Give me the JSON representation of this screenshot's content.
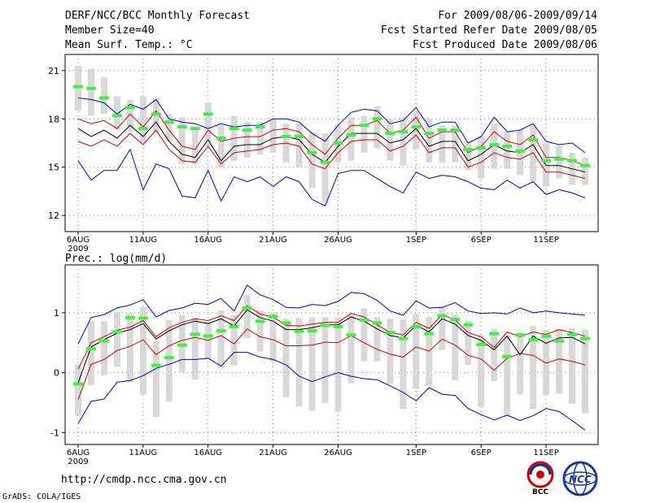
{
  "header": {
    "title": "DERF/NCC/BCC Monthly Forecast",
    "member_size": "Member Size=40",
    "variable": "Mean Surf. Temp.: °C",
    "for_range": "For 2009/08/06-2009/09/14",
    "fcst_started": "Fcst Started Refer Date 2009/08/05",
    "fcst_produced": "Fcst Produced Date 2009/08/06"
  },
  "prec_label": "Prec.: log(mm/d)",
  "footer": {
    "url": "http://cmdp.ncc.cma.gov.cn",
    "grads": "GrADS: COLA/IGES",
    "logo_bcc_text": "BCC",
    "logo_ncc_text": "NCC"
  },
  "colors": {
    "upper_lower_bound": "#0000cc",
    "spread": "#cc0000",
    "ensemble_mean": "#000000",
    "observation_bar": "#44ee44",
    "box": "#d8d8d8"
  },
  "chart_data": [
    {
      "type": "line",
      "title": "Mean Surf. Temp.: °C",
      "x_ticks": [
        "6AUG",
        "11AUG",
        "16AUG",
        "21AUG",
        "26AUG",
        "1SEP",
        "6SEP",
        "11SEP"
      ],
      "x_tick_index": [
        0,
        5,
        10,
        15,
        20,
        26,
        31,
        36
      ],
      "year_label": "2009",
      "y_ticks": [
        12,
        15,
        18,
        21
      ],
      "ylim": [
        11.0,
        22.0
      ],
      "days": 40,
      "series": [
        {
          "name": "upper",
          "values": [
            19.3,
            19.2,
            19.0,
            18.3,
            18.9,
            18.6,
            19.2,
            18.0,
            17.8,
            17.7,
            17.4,
            17.7,
            17.5,
            17.6,
            17.6,
            18.0,
            18.0,
            17.8,
            17.1,
            16.6,
            17.6,
            18.4,
            18.6,
            18.5,
            17.7,
            17.9,
            18.7,
            17.5,
            17.8,
            17.8,
            16.5,
            16.9,
            18.1,
            17.2,
            17.3,
            17.7,
            16.6,
            16.4,
            16.5,
            15.9
          ]
        },
        {
          "name": "upper_spread",
          "values": [
            18.0,
            17.7,
            17.9,
            17.4,
            18.3,
            17.5,
            18.5,
            17.3,
            16.3,
            16.1,
            17.3,
            16.6,
            16.8,
            16.9,
            16.9,
            17.3,
            17.4,
            17.2,
            16.4,
            15.8,
            16.8,
            17.6,
            17.6,
            17.9,
            17.1,
            17.3,
            18.1,
            16.8,
            17.2,
            17.2,
            15.9,
            16.3,
            17.2,
            16.6,
            16.4,
            17.0,
            15.6,
            15.6,
            15.4,
            15.1
          ]
        },
        {
          "name": "ensemble_mean",
          "values": [
            17.4,
            16.9,
            17.3,
            16.8,
            17.6,
            16.9,
            17.8,
            16.6,
            15.8,
            15.6,
            16.7,
            15.4,
            16.3,
            16.4,
            16.4,
            16.8,
            16.9,
            16.7,
            15.8,
            15.3,
            16.3,
            17.1,
            17.1,
            17.1,
            16.5,
            16.7,
            17.4,
            16.3,
            16.6,
            16.6,
            15.4,
            15.8,
            16.4,
            16.0,
            15.9,
            16.4,
            15.1,
            15.1,
            14.9,
            14.7
          ]
        },
        {
          "name": "lower_spread",
          "values": [
            16.6,
            16.3,
            16.7,
            16.3,
            17.1,
            16.4,
            17.3,
            16.1,
            15.4,
            15.3,
            16.3,
            15.2,
            15.9,
            16.0,
            16.1,
            16.4,
            16.5,
            16.3,
            15.2,
            14.9,
            15.9,
            16.6,
            16.7,
            16.7,
            16.0,
            16.3,
            17.0,
            15.9,
            16.2,
            16.2,
            15.0,
            15.3,
            15.9,
            15.6,
            15.5,
            15.9,
            14.7,
            14.7,
            14.5,
            14.3
          ]
        },
        {
          "name": "lower",
          "values": [
            15.4,
            14.2,
            14.8,
            14.8,
            16.1,
            13.6,
            15.2,
            14.9,
            13.2,
            13.1,
            14.8,
            12.9,
            14.4,
            14.1,
            14.4,
            13.8,
            14.4,
            14.1,
            13.0,
            12.6,
            14.6,
            14.8,
            14.8,
            14.3,
            13.8,
            13.4,
            14.7,
            14.3,
            14.5,
            14.4,
            14.1,
            13.7,
            13.6,
            14.2,
            13.7,
            14.1,
            13.3,
            13.6,
            13.4,
            13.1
          ]
        }
      ],
      "boxes": [
        [
          18.5,
          21.3
        ],
        [
          18.2,
          21.1
        ],
        [
          18.3,
          20.6
        ],
        [
          17.3,
          19.4
        ],
        [
          17.2,
          19.2
        ],
        [
          16.5,
          19.4
        ],
        [
          17.1,
          19.3
        ],
        [
          16.6,
          18.3
        ],
        [
          15.2,
          18.1
        ],
        [
          15.2,
          17.4
        ],
        [
          16.3,
          19.0
        ],
        [
          15.0,
          17.6
        ],
        [
          15.4,
          18.2
        ],
        [
          15.6,
          17.8
        ],
        [
          15.8,
          17.8
        ],
        [
          15.9,
          18.0
        ],
        [
          15.3,
          17.7
        ],
        [
          15.0,
          17.7
        ],
        [
          13.7,
          17.2
        ],
        [
          12.8,
          17.1
        ],
        [
          15.3,
          17.6
        ],
        [
          15.4,
          18.1
        ],
        [
          15.9,
          18.2
        ],
        [
          16.2,
          18.8
        ],
        [
          15.4,
          18.0
        ],
        [
          15.1,
          18.1
        ],
        [
          16.1,
          18.4
        ],
        [
          15.3,
          18.0
        ],
        [
          15.3,
          17.6
        ],
        [
          15.3,
          17.6
        ],
        [
          14.8,
          16.6
        ],
        [
          14.3,
          16.9
        ],
        [
          14.9,
          17.7
        ],
        [
          14.9,
          17.2
        ],
        [
          14.5,
          17.3
        ],
        [
          14.1,
          17.7
        ],
        [
          13.8,
          16.5
        ],
        [
          14.3,
          16.3
        ],
        [
          13.9,
          15.9
        ],
        [
          13.9,
          15.6
        ]
      ],
      "observations": [
        20.0,
        19.9,
        19.3,
        18.2,
        18.7,
        17.4,
        18.3,
        17.8,
        17.5,
        17.4,
        18.3,
        16.8,
        17.4,
        17.3,
        17.5,
        null,
        16.9,
        16.9,
        15.9,
        15.3,
        16.5,
        17.0,
        17.6,
        18.0,
        17.1,
        17.2,
        17.5,
        17.1,
        17.3,
        17.3,
        16.1,
        16.2,
        16.4,
        16.3,
        16.0,
        16.7,
        15.4,
        15.5,
        15.4,
        15.1
      ]
    },
    {
      "type": "line",
      "title": "Prec.: log(mm/d)",
      "x_ticks": [
        "6AUG",
        "11AUG",
        "16AUG",
        "21AUG",
        "26AUG",
        "1SEP",
        "6SEP",
        "11SEP"
      ],
      "x_tick_index": [
        0,
        5,
        10,
        15,
        20,
        26,
        31,
        36
      ],
      "year_label": "2009",
      "y_ticks": [
        -1,
        0,
        1
      ],
      "ylim": [
        -1.2,
        1.8
      ],
      "days": 40,
      "series": [
        {
          "name": "upper",
          "values": [
            0.48,
            0.92,
            0.97,
            1.08,
            1.13,
            1.22,
            0.93,
            1.04,
            1.08,
            1.16,
            1.14,
            1.24,
            1.03,
            1.46,
            1.3,
            1.22,
            1.09,
            1.08,
            1.14,
            1.12,
            1.19,
            1.34,
            1.32,
            1.21,
            1.03,
            0.96,
            1.2,
            1.08,
            1.09,
            1.17,
            1.03,
            0.99,
            1.0,
            0.98,
            1.08,
            1.0,
            1.03,
            1.0,
            0.98,
            0.96
          ]
        },
        {
          "name": "upper_spread",
          "values": [
            0.06,
            0.5,
            0.6,
            0.71,
            0.76,
            0.87,
            0.6,
            0.75,
            0.84,
            0.9,
            0.87,
            0.95,
            0.87,
            1.12,
            0.98,
            0.93,
            0.79,
            0.78,
            0.81,
            0.84,
            0.84,
            0.99,
            0.93,
            0.8,
            0.67,
            0.63,
            0.84,
            0.74,
            0.97,
            0.88,
            0.67,
            0.6,
            0.42,
            0.68,
            0.6,
            0.68,
            0.64,
            0.72,
            0.67,
            0.61
          ]
        },
        {
          "name": "ensemble_mean",
          "values": [
            -0.17,
            0.43,
            0.55,
            0.66,
            0.72,
            0.82,
            0.56,
            0.7,
            0.8,
            0.86,
            0.82,
            0.9,
            0.78,
            1.05,
            0.92,
            0.86,
            0.72,
            0.72,
            0.75,
            0.8,
            0.8,
            0.93,
            0.86,
            0.73,
            0.62,
            0.58,
            0.79,
            0.68,
            0.9,
            0.81,
            0.62,
            0.54,
            0.38,
            0.61,
            0.3,
            0.61,
            0.49,
            0.58,
            0.59,
            0.48
          ]
        },
        {
          "name": "lower_spread",
          "values": [
            -0.45,
            0.14,
            0.22,
            0.37,
            0.44,
            0.55,
            0.3,
            0.45,
            0.54,
            0.59,
            0.54,
            0.62,
            0.48,
            0.73,
            0.6,
            0.55,
            0.45,
            0.45,
            0.46,
            0.51,
            0.5,
            0.62,
            0.5,
            0.39,
            0.31,
            0.26,
            0.43,
            0.36,
            0.56,
            0.46,
            0.29,
            0.23,
            0.04,
            0.24,
            0.32,
            0.29,
            0.16,
            0.23,
            0.19,
            0.13
          ]
        },
        {
          "name": "lower",
          "values": [
            -0.85,
            -0.48,
            -0.44,
            -0.16,
            -0.13,
            -0.05,
            0.07,
            0.14,
            0.22,
            0.22,
            0.24,
            0.11,
            0.34,
            0.34,
            0.26,
            0.22,
            0.13,
            -0.06,
            -0.15,
            -0.07,
            0.0,
            -0.06,
            -0.1,
            -0.12,
            -0.22,
            -0.33,
            -0.47,
            -0.25,
            -0.36,
            -0.38,
            -0.6,
            -0.7,
            -0.79,
            -0.71,
            -0.8,
            -0.72,
            -0.6,
            -0.65,
            -0.8,
            -0.96
          ]
        }
      ],
      "boxes": [
        [
          -0.72,
          0.14
        ],
        [
          -0.21,
          0.86
        ],
        [
          -0.04,
          0.86
        ],
        [
          0.1,
          1.01
        ],
        [
          -0.16,
          1.0
        ],
        [
          -0.37,
          1.1
        ],
        [
          -0.74,
          0.53
        ],
        [
          -0.48,
          0.88
        ],
        [
          0.01,
          0.96
        ],
        [
          -0.12,
          0.91
        ],
        [
          0.22,
          0.85
        ],
        [
          0.08,
          1.04
        ],
        [
          0.12,
          0.96
        ],
        [
          0.58,
          1.3
        ],
        [
          0.35,
          1.04
        ],
        [
          0.19,
          1.01
        ],
        [
          -0.41,
          0.9
        ],
        [
          -0.56,
          0.91
        ],
        [
          -0.64,
          0.92
        ],
        [
          -0.51,
          0.93
        ],
        [
          -0.65,
          0.92
        ],
        [
          -0.18,
          0.97
        ],
        [
          0.19,
          1.07
        ],
        [
          0.19,
          0.93
        ],
        [
          -0.19,
          0.9
        ],
        [
          -0.61,
          0.89
        ],
        [
          -0.27,
          0.98
        ],
        [
          -0.22,
          0.93
        ],
        [
          0.38,
          1.11
        ],
        [
          -0.13,
          0.97
        ],
        [
          0.13,
          0.87
        ],
        [
          -0.57,
          0.62
        ],
        [
          -0.14,
          0.73
        ],
        [
          -0.73,
          0.62
        ],
        [
          -0.36,
          0.66
        ],
        [
          -0.61,
          0.78
        ],
        [
          -0.37,
          0.71
        ],
        [
          -0.35,
          0.73
        ],
        [
          -0.52,
          0.74
        ],
        [
          -0.68,
          0.72
        ]
      ],
      "observations": [
        -0.19,
        0.4,
        0.53,
        0.68,
        0.92,
        0.91,
        0.12,
        0.25,
        0.46,
        0.64,
        0.61,
        0.7,
        0.77,
        1.08,
        0.86,
        0.94,
        0.83,
        0.69,
        0.7,
        0.79,
        0.77,
        0.63,
        0.88,
        0.83,
        0.67,
        0.57,
        0.77,
        0.65,
        0.95,
        0.89,
        0.8,
        0.47,
        0.65,
        0.27,
        0.63,
        0.55,
        0.61,
        0.53,
        0.64,
        0.57
      ]
    }
  ]
}
